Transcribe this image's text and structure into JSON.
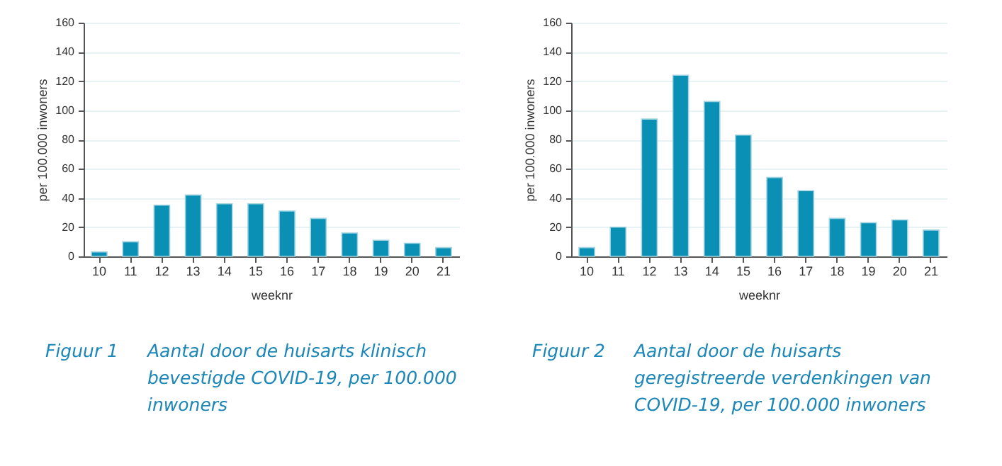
{
  "chart_data": [
    {
      "type": "bar",
      "title": "Figuur 1",
      "subtitle": "Aantal door de huisarts klinisch bevestigde COVID-19, per 100.000 inwoners",
      "xlabel": "weeknr",
      "ylabel": "per 100.000 inwoners",
      "categories": [
        "10",
        "11",
        "12",
        "13",
        "14",
        "15",
        "16",
        "17",
        "18",
        "19",
        "20",
        "21"
      ],
      "values": [
        3,
        10,
        35,
        42,
        36,
        36,
        31,
        26,
        16,
        11,
        9,
        6
      ],
      "color": "#0a8fb5",
      "ylim": [
        0,
        160
      ],
      "yticks": [
        0,
        20,
        40,
        60,
        80,
        100,
        120,
        140,
        160
      ],
      "grid": "y"
    },
    {
      "type": "bar",
      "title": "Figuur 2",
      "subtitle": "Aantal door de huisarts geregistreerde verdenkingen van COVID-19, per 100.000 inwoners",
      "xlabel": "weeknr",
      "ylabel": "per 100.000 inwoners",
      "categories": [
        "10",
        "11",
        "12",
        "13",
        "14",
        "15",
        "16",
        "17",
        "18",
        "19",
        "20",
        "21"
      ],
      "values": [
        6,
        20,
        94,
        124,
        106,
        83,
        54,
        45,
        26,
        23,
        25,
        18
      ],
      "color": "#0a8fb5",
      "ylim": [
        0,
        160
      ],
      "yticks": [
        0,
        20,
        40,
        60,
        80,
        100,
        120,
        140,
        160
      ],
      "grid": "y"
    }
  ]
}
